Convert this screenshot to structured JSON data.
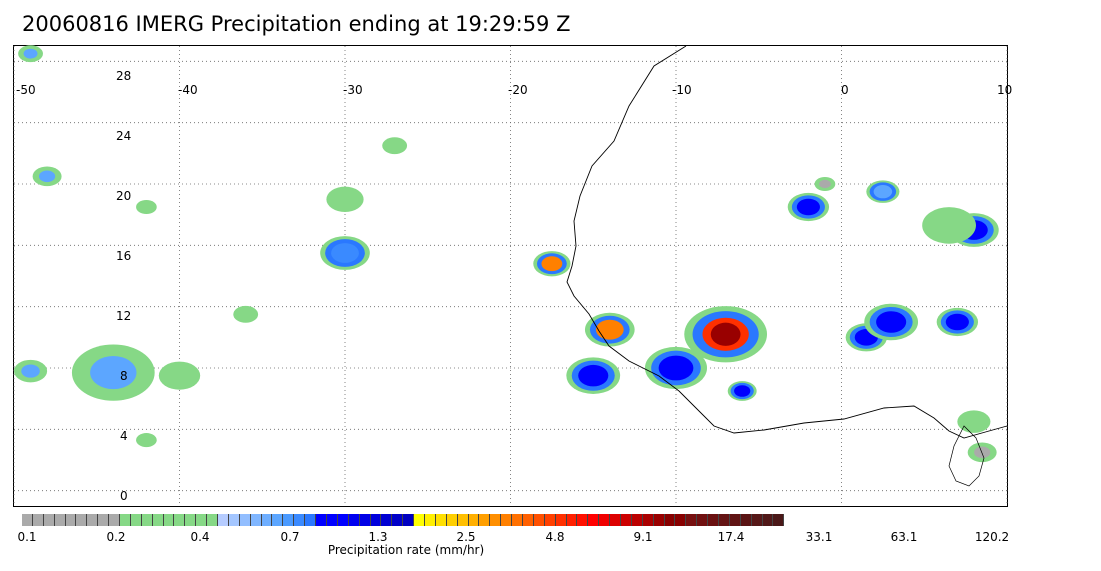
{
  "title": "20060816 IMERG Precipitation ending at 19:29:59 Z",
  "map": {
    "lon_range": [
      -50,
      10
    ],
    "lat_range": [
      -1,
      29
    ],
    "lon_ticks": [
      "-50",
      "-40",
      "-30",
      "-20",
      "-10",
      "0",
      "10"
    ],
    "lat_ticks": [
      "0",
      "4",
      "8",
      "12",
      "16",
      "20",
      "24",
      "28"
    ],
    "grid": "dotted",
    "region": "tropical Atlantic and West Africa"
  },
  "colorbar": {
    "title": "Precipitation rate (mm/hr)",
    "labels": [
      "0.1",
      "0.2",
      "0.4",
      "0.7",
      "1.3",
      "2.5",
      "4.8",
      "9.1",
      "17.4",
      "33.1",
      "63.1",
      "120.2"
    ],
    "colors": [
      "#aaaaaa",
      "#aaaaaa",
      "#aaaaaa",
      "#aaaaaa",
      "#aaaaaa",
      "#aaaaaa",
      "#aaaaaa",
      "#aaaaaa",
      "#aaaaaa",
      "#86d886",
      "#86d886",
      "#86d886",
      "#86d886",
      "#86d886",
      "#86d886",
      "#86d886",
      "#86d886",
      "#86d886",
      "#b6ccff",
      "#a4c6ff",
      "#92beff",
      "#80b6ff",
      "#6eaeff",
      "#5ca6ff",
      "#4a9aff",
      "#3a8aff",
      "#2a78ff",
      "#0000ff",
      "#0000ff",
      "#0000ff",
      "#0000f0",
      "#0000e6",
      "#0000dc",
      "#0000d2",
      "#0000c8",
      "#0000c0",
      "#ffff00",
      "#ffef00",
      "#ffdf00",
      "#ffcf00",
      "#ffbf00",
      "#ffaf00",
      "#ff9f00",
      "#ff8f00",
      "#ff8000",
      "#ff7000",
      "#ff6000",
      "#ff5000",
      "#ff4000",
      "#ff3000",
      "#ff2000",
      "#ff1000",
      "#ff0000",
      "#f00000",
      "#dd0000",
      "#cc0000",
      "#bb0000",
      "#aa0000",
      "#990000",
      "#880000",
      "#880000",
      "#771010",
      "#701010",
      "#6a1010",
      "#641414",
      "#601414",
      "#5a1414",
      "#561818",
      "#501818",
      "#4a1818"
    ]
  },
  "precip_cells": [
    {
      "lon": -7,
      "lat": 10.2,
      "r": 2.0,
      "intensity": "extreme",
      "color": "#ff3000"
    },
    {
      "lon": -14,
      "lat": 10.5,
      "r": 1.2,
      "intensity": "heavy",
      "color": "#ff8000"
    },
    {
      "lon": -17.5,
      "lat": 14.8,
      "r": 0.9,
      "intensity": "heavy",
      "color": "#ff8000"
    },
    {
      "lon": 1.5,
      "lat": 10,
      "r": 1.0,
      "intensity": "moderate",
      "color": "#0000ff"
    },
    {
      "lon": 3,
      "lat": 11,
      "r": 1.3,
      "intensity": "moderate",
      "color": "#0000ff"
    },
    {
      "lon": 7,
      "lat": 11,
      "r": 1.0,
      "intensity": "moderate",
      "color": "#0000ff"
    },
    {
      "lon": -15,
      "lat": 7.5,
      "r": 1.3,
      "intensity": "moderate",
      "color": "#0000ff"
    },
    {
      "lon": -10,
      "lat": 8,
      "r": 1.5,
      "intensity": "moderate",
      "color": "#0000ff"
    },
    {
      "lon": -2,
      "lat": 18.5,
      "r": 1.0,
      "intensity": "moderate",
      "color": "#0000ff"
    },
    {
      "lon": 8,
      "lat": 17,
      "r": 1.2,
      "intensity": "moderate",
      "color": "#0000ff"
    },
    {
      "lon": 6.5,
      "lat": 17.3,
      "r": 1.3,
      "intensity": "light",
      "color": "#86d886"
    },
    {
      "lon": -30,
      "lat": 15.5,
      "r": 1.2,
      "intensity": "moderate",
      "color": "#3a8aff"
    },
    {
      "lon": -44,
      "lat": 7.7,
      "r": 2.0,
      "intensity": "light",
      "color": "#5ca6ff"
    },
    {
      "lon": -49,
      "lat": 7.8,
      "r": 0.8,
      "intensity": "light",
      "color": "#5ca6ff"
    },
    {
      "lon": -40,
      "lat": 7.5,
      "r": 1.0,
      "intensity": "light",
      "color": "#86d886"
    },
    {
      "lon": -30,
      "lat": 19,
      "r": 0.9,
      "intensity": "light",
      "color": "#86d886"
    },
    {
      "lon": -27,
      "lat": 22.5,
      "r": 0.6,
      "intensity": "light",
      "color": "#86d886"
    },
    {
      "lon": -48,
      "lat": 20.5,
      "r": 0.7,
      "intensity": "light",
      "color": "#5ca6ff"
    },
    {
      "lon": -42,
      "lat": 18.5,
      "r": 0.5,
      "intensity": "light",
      "color": "#86d886"
    },
    {
      "lon": -42,
      "lat": 3.3,
      "r": 0.5,
      "intensity": "light",
      "color": "#86d886"
    },
    {
      "lon": 8,
      "lat": 4.5,
      "r": 0.8,
      "intensity": "light",
      "color": "#86d886"
    },
    {
      "lon": 8.5,
      "lat": 2.5,
      "r": 0.7,
      "intensity": "very-light",
      "color": "#aaaaaa"
    },
    {
      "lon": -1,
      "lat": 20,
      "r": 0.5,
      "intensity": "very-light",
      "color": "#aaaaaa"
    },
    {
      "lon": 2.5,
      "lat": 19.5,
      "r": 0.8,
      "intensity": "moderate",
      "color": "#5ca6ff"
    },
    {
      "lon": -49,
      "lat": 28.5,
      "r": 0.6,
      "intensity": "light",
      "color": "#5ca6ff"
    },
    {
      "lon": -36,
      "lat": 11.5,
      "r": 0.6,
      "intensity": "light",
      "color": "#86d886"
    },
    {
      "lon": -6,
      "lat": 6.5,
      "r": 0.7,
      "intensity": "moderate",
      "color": "#0000ff"
    }
  ]
}
